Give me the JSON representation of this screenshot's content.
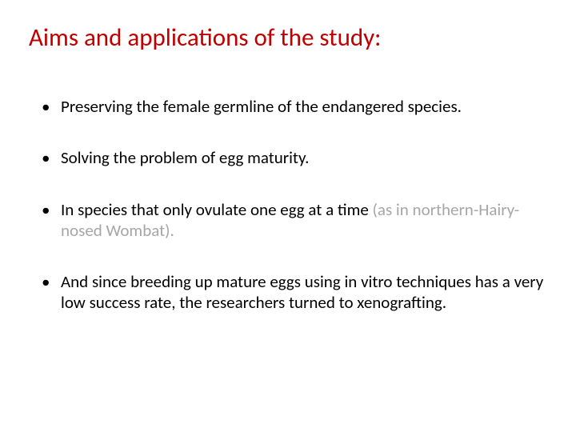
{
  "slide": {
    "title": "Aims and applications of the study:",
    "title_color": "#c00000",
    "title_fontsize": 31,
    "body_fontsize": 21,
    "body_color": "#000000",
    "muted_color": "#a6a6a6",
    "background_color": "#ffffff",
    "bullets": [
      {
        "text": "Preserving the female germline of the endangered species."
      },
      {
        "text": "Solving the problem of egg maturity."
      },
      {
        "text_a": "In species that only ovulate one egg at a time ",
        "text_b": "(as in northern-Hairy-nosed Wombat).",
        "text_b_muted": true
      },
      {
        "text": "And since breeding up mature eggs using in vitro techniques has a very low success rate, the researchers turned to xenografting."
      }
    ]
  }
}
